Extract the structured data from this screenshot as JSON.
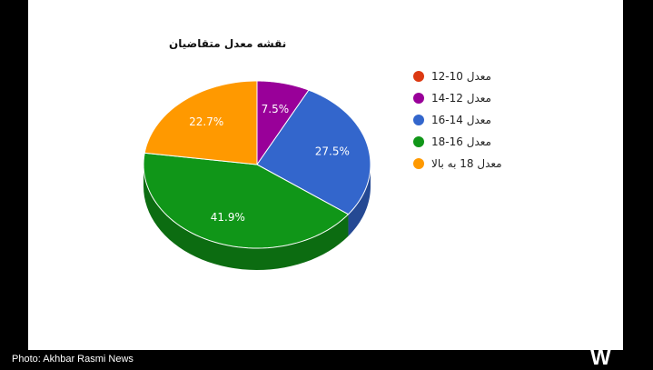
{
  "chart_data": {
    "type": "pie",
    "title": "نقشه معدل متقاضیان",
    "categories": [
      "معدل 10-12",
      "معدل 12-14",
      "معدل 14-16",
      "معدل 16-18",
      "معدل 18 به بالا"
    ],
    "values": [
      0,
      7.5,
      27.5,
      41.9,
      22.7
    ],
    "value_labels": [
      "",
      "7.5%",
      "27.5%",
      "41.9%",
      "22.7%"
    ],
    "colors": [
      "#dc3912",
      "#990099",
      "#3366cc",
      "#109618",
      "#ff9900"
    ],
    "legend_position": "right"
  },
  "caption": "Photo: Akhbar Rasmi News",
  "logo_text": "W"
}
